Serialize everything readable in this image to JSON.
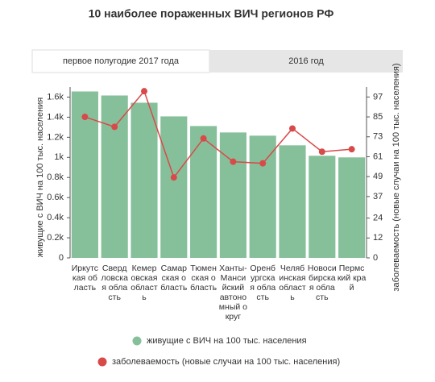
{
  "title": "10 наиболее пораженных ВИЧ регионов РФ",
  "tabs": [
    "первое полугодие 2017 года",
    "2016 год"
  ],
  "chart_data": {
    "type": "bar_line",
    "y_label": "живущие с ВИЧ на 100 тыс. населения",
    "y2_label": "заболеваемость (новые случаи на 100 тыс. населения)",
    "categories": [
      "Иркутская область",
      "Свердловская область",
      "Кемеровская область",
      "Самарская область",
      "Тюменская область",
      "Ханты-Мансийский автономный округ",
      "Оренбургская область",
      "Челябинская область",
      "Новосибирская область",
      "Пермский край"
    ],
    "series": [
      {
        "name": "живущие с ВИЧ на 100 тыс. населения",
        "color": "#86c09a",
        "values": [
          1656,
          1616,
          1544,
          1408,
          1312,
          1248,
          1216,
          1120,
          1016,
          1000
        ]
      },
      {
        "name": "заболеваемость (новые случаи на 100 тыс. населения)",
        "color": "#d84a4a",
        "axis": "y2",
        "values": [
          85,
          79,
          100.5,
          48.5,
          72,
          58,
          57,
          78,
          64,
          65.5
        ]
      }
    ],
    "ylim": [
      0,
      1700
    ],
    "yticks": [
      0,
      {
        "value": 200,
        "label": "0.2k"
      },
      {
        "value": 400,
        "label": "0.4k"
      },
      {
        "value": 600,
        "label": "0.6k"
      },
      {
        "value": 800,
        "label": "0.8k"
      },
      {
        "value": 1000,
        "label": "1k"
      },
      {
        "value": 1200,
        "label": "1.2k"
      },
      {
        "value": 1400,
        "label": "1.4k"
      },
      {
        "value": 1600,
        "label": "1.6k"
      }
    ],
    "y2lim": [
      0,
      103
    ],
    "y2ticks": [
      0,
      12,
      24,
      37,
      49,
      61,
      73,
      85,
      97
    ],
    "grid": false
  }
}
